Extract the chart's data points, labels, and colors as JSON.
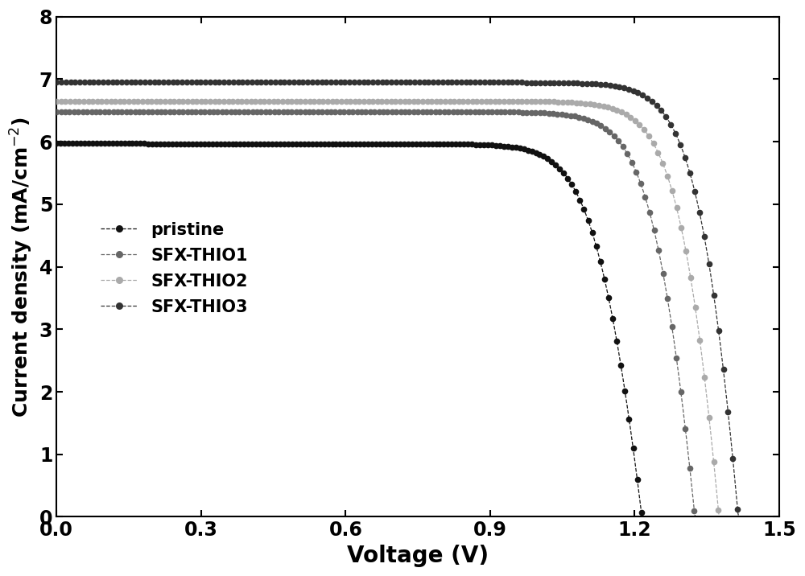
{
  "title": "",
  "xlabel": "Voltage (V)",
  "ylabel": "Current density (mA/cm$^{-2}$)",
  "xlim": [
    0.0,
    1.5
  ],
  "ylim": [
    0.0,
    8.0
  ],
  "xticks": [
    0.0,
    0.3,
    0.6,
    0.9,
    1.2,
    1.5
  ],
  "yticks": [
    0,
    1,
    2,
    3,
    4,
    5,
    6,
    7,
    8
  ],
  "series": [
    {
      "label": "pristine",
      "color": "#111111",
      "jsc": 5.97,
      "voc": 1.215,
      "rs": 0.008,
      "rsh": 200,
      "n_ideality": 1.8
    },
    {
      "label": "SFX-THIO1",
      "color": "#666666",
      "jsc": 6.48,
      "voc": 1.325,
      "rs": 0.006,
      "rsh": 300,
      "n_ideality": 1.8
    },
    {
      "label": "SFX-THIO2",
      "color": "#aaaaaa",
      "jsc": 6.65,
      "voc": 1.375,
      "rs": 0.005,
      "rsh": 350,
      "n_ideality": 1.8
    },
    {
      "label": "SFX-THIO3",
      "color": "#333333",
      "jsc": 6.95,
      "voc": 1.415,
      "rs": 0.005,
      "rsh": 400,
      "n_ideality": 1.8
    }
  ],
  "n_markers_flat": 130,
  "n_markers_knee": 18,
  "markersize": 5.5,
  "linewidth": 0.9,
  "xlabel_fontsize": 20,
  "ylabel_fontsize": 18,
  "tick_fontsize": 17,
  "legend_fontsize": 15,
  "background_color": "#ffffff"
}
